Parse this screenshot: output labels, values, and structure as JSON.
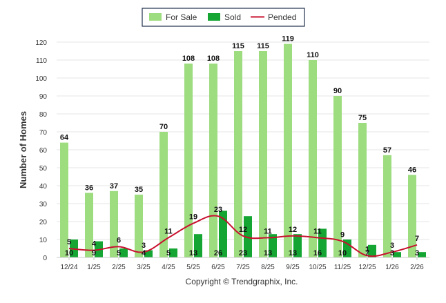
{
  "chart_data": {
    "type": "bar",
    "categories": [
      "12/24",
      "1/25",
      "2/25",
      "3/25",
      "4/25",
      "5/25",
      "6/25",
      "7/25",
      "8/25",
      "9/25",
      "10/25",
      "11/25",
      "12/25",
      "1/26",
      "2/26"
    ],
    "series": [
      {
        "name": "For Sale",
        "kind": "bar",
        "color": "#9ddc7f",
        "values": [
          64,
          36,
          37,
          35,
          70,
          108,
          108,
          115,
          115,
          119,
          110,
          90,
          75,
          57,
          46
        ]
      },
      {
        "name": "Sold",
        "kind": "bar",
        "color": "#14a532",
        "values": [
          10,
          9,
          5,
          4,
          5,
          13,
          26,
          23,
          13,
          13,
          16,
          10,
          7,
          3,
          3
        ]
      },
      {
        "name": "Pended",
        "kind": "line",
        "color": "#c8102e",
        "values": [
          5,
          4,
          6,
          3,
          11,
          19,
          23,
          12,
          11,
          12,
          11,
          9,
          1,
          3,
          7
        ]
      }
    ],
    "ylabel": "Number of Homes",
    "xlabel": "",
    "ylim": [
      0,
      120
    ],
    "yticks": [
      0,
      10,
      20,
      30,
      40,
      50,
      60,
      70,
      80,
      90,
      100,
      110,
      120
    ],
    "grid": true,
    "legend_position": "top-center",
    "footer": "Copyright © Trendgraphix, Inc."
  }
}
